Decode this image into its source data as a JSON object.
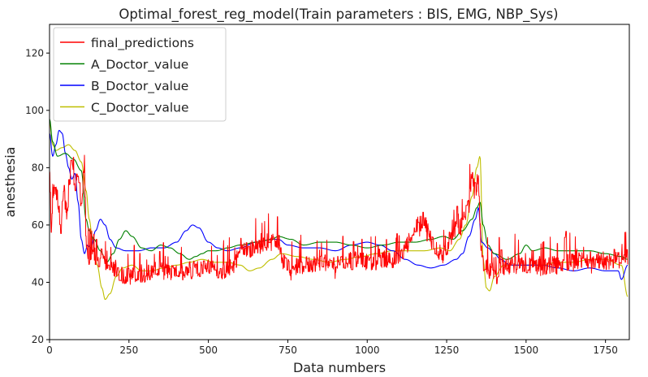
{
  "chart_data": {
    "type": "line",
    "title": "Optimal_forest_reg_model(Train parameters : BIS, EMG, NBP_Sys)",
    "xlabel": "Data numbers",
    "ylabel": "anesthesia",
    "xlim": [
      0,
      1825
    ],
    "ylim": [
      20,
      130
    ],
    "xticks": [
      0,
      250,
      500,
      750,
      1000,
      1250,
      1500,
      1750
    ],
    "yticks": [
      20,
      40,
      60,
      80,
      100,
      120
    ],
    "grid": false,
    "legend_position": "upper-left",
    "series": [
      {
        "name": "final_predictions",
        "color": "#ff0000",
        "style": "noisy",
        "points": [
          [
            0,
            80
          ],
          [
            5,
            56
          ],
          [
            10,
            72
          ],
          [
            25,
            70
          ],
          [
            35,
            60
          ],
          [
            45,
            72
          ],
          [
            55,
            63
          ],
          [
            60,
            74
          ],
          [
            70,
            82
          ],
          [
            80,
            73
          ],
          [
            90,
            78
          ],
          [
            100,
            65
          ],
          [
            110,
            83
          ],
          [
            115,
            53
          ],
          [
            125,
            47
          ],
          [
            135,
            51
          ],
          [
            150,
            46
          ],
          [
            165,
            50
          ],
          [
            180,
            45
          ],
          [
            195,
            44
          ],
          [
            210,
            45
          ],
          [
            220,
            43
          ],
          [
            250,
            42
          ],
          [
            300,
            43
          ],
          [
            320,
            44
          ],
          [
            350,
            44
          ],
          [
            400,
            43
          ],
          [
            450,
            45
          ],
          [
            500,
            45
          ],
          [
            550,
            44
          ],
          [
            580,
            46
          ],
          [
            600,
            51
          ],
          [
            650,
            52
          ],
          [
            700,
            54
          ],
          [
            720,
            55
          ],
          [
            730,
            48
          ],
          [
            760,
            45
          ],
          [
            800,
            46
          ],
          [
            850,
            47
          ],
          [
            900,
            46
          ],
          [
            950,
            48
          ],
          [
            1000,
            47
          ],
          [
            1050,
            48
          ],
          [
            1100,
            48
          ],
          [
            1140,
            56
          ],
          [
            1160,
            60
          ],
          [
            1180,
            62
          ],
          [
            1200,
            55
          ],
          [
            1230,
            50
          ],
          [
            1250,
            51
          ],
          [
            1270,
            58
          ],
          [
            1300,
            60
          ],
          [
            1320,
            68
          ],
          [
            1330,
            78
          ],
          [
            1340,
            72
          ],
          [
            1350,
            75
          ],
          [
            1360,
            48
          ],
          [
            1380,
            45
          ],
          [
            1400,
            44
          ],
          [
            1450,
            46
          ],
          [
            1500,
            46
          ],
          [
            1550,
            45
          ],
          [
            1600,
            47
          ],
          [
            1650,
            47
          ],
          [
            1700,
            48
          ],
          [
            1750,
            47
          ],
          [
            1800,
            48
          ],
          [
            1820,
            49
          ]
        ]
      },
      {
        "name": "A_Doctor_value",
        "color": "#008000",
        "style": "smooth",
        "points": [
          [
            0,
            97
          ],
          [
            10,
            89
          ],
          [
            25,
            84
          ],
          [
            50,
            85
          ],
          [
            75,
            83
          ],
          [
            100,
            79
          ],
          [
            115,
            62
          ],
          [
            125,
            58
          ],
          [
            140,
            55
          ],
          [
            160,
            51
          ],
          [
            180,
            47
          ],
          [
            200,
            50
          ],
          [
            220,
            55
          ],
          [
            240,
            58
          ],
          [
            260,
            56
          ],
          [
            290,
            52
          ],
          [
            320,
            51
          ],
          [
            350,
            53
          ],
          [
            380,
            52
          ],
          [
            410,
            50
          ],
          [
            440,
            48
          ],
          [
            460,
            49
          ],
          [
            480,
            50
          ],
          [
            500,
            51
          ],
          [
            525,
            51
          ],
          [
            560,
            52
          ],
          [
            600,
            53
          ],
          [
            650,
            54
          ],
          [
            700,
            55
          ],
          [
            720,
            56
          ],
          [
            760,
            55
          ],
          [
            800,
            53
          ],
          [
            850,
            54
          ],
          [
            900,
            54
          ],
          [
            950,
            53
          ],
          [
            1000,
            52
          ],
          [
            1050,
            53
          ],
          [
            1100,
            54
          ],
          [
            1150,
            54
          ],
          [
            1200,
            55
          ],
          [
            1240,
            56
          ],
          [
            1270,
            55
          ],
          [
            1300,
            58
          ],
          [
            1330,
            62
          ],
          [
            1345,
            66
          ],
          [
            1355,
            68
          ],
          [
            1365,
            60
          ],
          [
            1380,
            53
          ],
          [
            1400,
            50
          ],
          [
            1440,
            48
          ],
          [
            1480,
            50
          ],
          [
            1500,
            53
          ],
          [
            1520,
            51
          ],
          [
            1560,
            52
          ],
          [
            1600,
            51
          ],
          [
            1650,
            51
          ],
          [
            1700,
            51
          ],
          [
            1750,
            50
          ],
          [
            1800,
            49
          ],
          [
            1820,
            48
          ]
        ]
      },
      {
        "name": "B_Doctor_value",
        "color": "#0000ff",
        "style": "smooth",
        "points": [
          [
            0,
            92
          ],
          [
            10,
            84
          ],
          [
            20,
            88
          ],
          [
            30,
            93
          ],
          [
            40,
            92
          ],
          [
            50,
            85
          ],
          [
            60,
            80
          ],
          [
            70,
            76
          ],
          [
            80,
            78
          ],
          [
            90,
            68
          ],
          [
            100,
            55
          ],
          [
            110,
            50
          ],
          [
            120,
            53
          ],
          [
            130,
            52
          ],
          [
            145,
            58
          ],
          [
            160,
            62
          ],
          [
            175,
            60
          ],
          [
            190,
            55
          ],
          [
            210,
            52
          ],
          [
            240,
            51
          ],
          [
            280,
            51
          ],
          [
            320,
            52
          ],
          [
            360,
            52
          ],
          [
            400,
            54
          ],
          [
            430,
            58
          ],
          [
            450,
            60
          ],
          [
            470,
            59
          ],
          [
            500,
            54
          ],
          [
            530,
            52
          ],
          [
            560,
            51
          ],
          [
            600,
            52
          ],
          [
            650,
            54
          ],
          [
            700,
            55
          ],
          [
            720,
            55
          ],
          [
            750,
            53
          ],
          [
            800,
            52
          ],
          [
            850,
            52
          ],
          [
            900,
            51
          ],
          [
            950,
            53
          ],
          [
            1000,
            54
          ],
          [
            1040,
            53
          ],
          [
            1080,
            51
          ],
          [
            1120,
            48
          ],
          [
            1160,
            46
          ],
          [
            1200,
            45
          ],
          [
            1240,
            46
          ],
          [
            1280,
            48
          ],
          [
            1300,
            50
          ],
          [
            1320,
            56
          ],
          [
            1340,
            62
          ],
          [
            1350,
            66
          ],
          [
            1360,
            54
          ],
          [
            1380,
            52
          ],
          [
            1400,
            50
          ],
          [
            1420,
            48
          ],
          [
            1450,
            46
          ],
          [
            1500,
            46
          ],
          [
            1550,
            46
          ],
          [
            1600,
            45
          ],
          [
            1650,
            44
          ],
          [
            1700,
            45
          ],
          [
            1750,
            44
          ],
          [
            1790,
            44
          ],
          [
            1800,
            41
          ],
          [
            1820,
            46
          ]
        ]
      },
      {
        "name": "C_Doctor_value",
        "color": "#bfbf00",
        "style": "smooth",
        "points": [
          [
            0,
            96
          ],
          [
            10,
            88
          ],
          [
            20,
            86
          ],
          [
            40,
            87
          ],
          [
            60,
            88
          ],
          [
            80,
            86
          ],
          [
            100,
            82
          ],
          [
            115,
            72
          ],
          [
            125,
            62
          ],
          [
            135,
            55
          ],
          [
            150,
            46
          ],
          [
            165,
            38
          ],
          [
            175,
            34
          ],
          [
            190,
            36
          ],
          [
            210,
            42
          ],
          [
            230,
            45
          ],
          [
            260,
            46
          ],
          [
            290,
            44
          ],
          [
            320,
            44
          ],
          [
            360,
            45
          ],
          [
            400,
            46
          ],
          [
            440,
            47
          ],
          [
            480,
            48
          ],
          [
            520,
            47
          ],
          [
            560,
            47
          ],
          [
            600,
            46
          ],
          [
            630,
            44
          ],
          [
            660,
            45
          ],
          [
            700,
            48
          ],
          [
            730,
            50
          ],
          [
            780,
            49
          ],
          [
            830,
            48
          ],
          [
            880,
            47
          ],
          [
            930,
            48
          ],
          [
            980,
            49
          ],
          [
            1030,
            50
          ],
          [
            1080,
            51
          ],
          [
            1130,
            51
          ],
          [
            1180,
            51
          ],
          [
            1230,
            52
          ],
          [
            1260,
            51
          ],
          [
            1290,
            55
          ],
          [
            1310,
            60
          ],
          [
            1330,
            70
          ],
          [
            1345,
            80
          ],
          [
            1355,
            84
          ],
          [
            1365,
            48
          ],
          [
            1375,
            38
          ],
          [
            1385,
            37
          ],
          [
            1400,
            42
          ],
          [
            1430,
            46
          ],
          [
            1470,
            46
          ],
          [
            1500,
            46
          ],
          [
            1550,
            46
          ],
          [
            1600,
            47
          ],
          [
            1650,
            47
          ],
          [
            1700,
            48
          ],
          [
            1750,
            48
          ],
          [
            1800,
            46
          ],
          [
            1820,
            35
          ]
        ]
      }
    ]
  }
}
